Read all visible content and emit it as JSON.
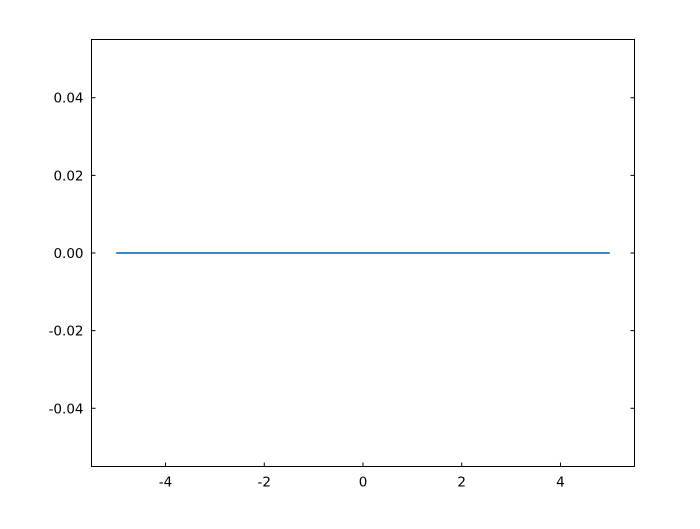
{
  "chart_data": {
    "type": "line",
    "title": "",
    "xlabel": "",
    "ylabel": "",
    "xlim": [
      -5.5,
      5.5
    ],
    "ylim": [
      -0.055,
      0.055
    ],
    "xticks": [
      -4,
      -2,
      0,
      2,
      4
    ],
    "xtick_labels": [
      "-4",
      "-2",
      "0",
      "2",
      "4"
    ],
    "yticks": [
      0.04,
      0.02,
      0.0,
      -0.02,
      -0.04
    ],
    "ytick_labels": [
      "0.04",
      "0.02",
      "0.00",
      "-0.02",
      "-0.04"
    ],
    "grid": false,
    "tick_direction": "in",
    "series": [
      {
        "color": "#1f77b4",
        "x": [
          -5,
          5
        ],
        "y": [
          0,
          0
        ]
      }
    ]
  }
}
